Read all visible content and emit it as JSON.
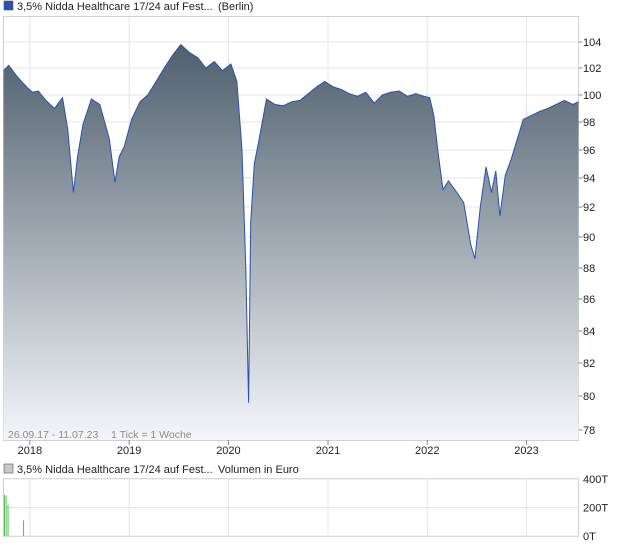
{
  "price_chart": {
    "legend_label": "3,5% Nidda Healthcare 17/24 auf Fest...",
    "exchange": "(Berlin)",
    "range_text": "26.09.17 - 11.07.23",
    "tick_text": "1 Tick = 1 Woche",
    "line_color": "#2a50b0",
    "fill_top_color": "#4f5f6d",
    "fill_bottom_color": "#f4f6f9"
  },
  "volume_chart": {
    "legend_label": "3,5% Nidda Healthcare 17/24 auf Fest...",
    "unit_label": "Volumen in Euro",
    "bar_color": "#55c055"
  },
  "chart_data": [
    {
      "type": "area",
      "x_axis_type": "date",
      "x_range": [
        "2017-09-26",
        "2023-07-11"
      ],
      "x_tick_labels": [
        "2018",
        "2019",
        "2020",
        "2021",
        "2022",
        "2023"
      ],
      "y_ticks": [
        78,
        80,
        82,
        84,
        86,
        88,
        90,
        92,
        94,
        96,
        98,
        100,
        102,
        104
      ],
      "y_range": [
        77,
        105
      ],
      "y_scale": "nonlinear",
      "grid": true,
      "y_axis_position": "right",
      "series": [
        {
          "x": [
            "2017-09-26",
            "2017-10-15",
            "2017-11-10",
            "2017-12-01",
            "2017-12-20",
            "2018-01-10",
            "2018-02-01",
            "2018-03-01",
            "2018-04-01",
            "2018-05-01",
            "2018-05-20",
            "2018-06-10",
            "2018-06-25",
            "2018-07-15",
            "2018-08-15",
            "2018-09-15",
            "2018-10-20",
            "2018-11-10",
            "2018-11-25",
            "2018-12-15",
            "2019-01-10",
            "2019-02-10",
            "2019-03-10",
            "2019-04-10",
            "2019-05-10",
            "2019-06-10",
            "2019-07-10",
            "2019-08-10",
            "2019-09-10",
            "2019-10-10",
            "2019-11-10",
            "2019-12-10",
            "2020-01-10",
            "2020-02-01",
            "2020-02-20",
            "2020-03-05",
            "2020-03-15",
            "2020-03-23",
            "2020-04-05",
            "2020-04-20",
            "2020-05-20",
            "2020-06-20",
            "2020-07-20",
            "2020-08-20",
            "2020-09-20",
            "2020-10-20",
            "2020-11-20",
            "2020-12-20",
            "2021-01-20",
            "2021-02-20",
            "2021-03-20",
            "2021-04-20",
            "2021-05-20",
            "2021-06-20",
            "2021-07-20",
            "2021-08-20",
            "2021-09-20",
            "2021-10-20",
            "2021-11-20",
            "2021-12-20",
            "2022-01-10",
            "2022-01-25",
            "2022-02-10",
            "2022-02-28",
            "2022-03-20",
            "2022-04-20",
            "2022-05-15",
            "2022-06-10",
            "2022-06-25",
            "2022-07-15",
            "2022-08-05",
            "2022-08-25",
            "2022-09-10",
            "2022-09-25",
            "2022-10-15",
            "2022-11-05",
            "2022-11-25",
            "2022-12-20",
            "2023-01-20",
            "2023-02-20",
            "2023-03-20",
            "2023-04-20",
            "2023-05-20",
            "2023-06-20",
            "2023-07-11"
          ],
          "y": [
            101.8,
            102.2,
            101.5,
            101.0,
            100.6,
            100.2,
            100.3,
            99.6,
            99.0,
            99.8,
            97.5,
            93.0,
            95.5,
            97.8,
            99.7,
            99.3,
            96.8,
            93.7,
            95.5,
            96.3,
            98.2,
            99.5,
            100.0,
            101.0,
            102.0,
            103.0,
            103.8,
            103.2,
            102.8,
            102.0,
            102.5,
            101.8,
            102.3,
            101.0,
            96.0,
            88.0,
            79.6,
            91.0,
            95.0,
            96.5,
            99.7,
            99.3,
            99.2,
            99.5,
            99.6,
            100.1,
            100.6,
            101.0,
            100.6,
            100.4,
            100.1,
            99.9,
            100.2,
            99.4,
            100.0,
            100.2,
            100.3,
            99.9,
            100.1,
            99.9,
            99.8,
            98.5,
            95.8,
            93.2,
            93.8,
            93.0,
            92.3,
            89.5,
            88.6,
            92.0,
            94.8,
            93.0,
            94.5,
            91.4,
            94.2,
            95.3,
            96.6,
            98.2,
            98.5,
            98.8,
            99.0,
            99.3,
            99.6,
            99.3,
            99.5
          ]
        }
      ]
    },
    {
      "type": "bar",
      "x_axis_type": "date",
      "y_ticks": [
        0,
        200,
        400
      ],
      "y_tick_labels": [
        "0T",
        "200T",
        "400T"
      ],
      "y_range": [
        0,
        400
      ],
      "grid": true,
      "series": [
        {
          "x": [
            "2017-09-26",
            "2017-10-02",
            "2017-10-09",
            "2017-12-05"
          ],
          "y": [
            290,
            285,
            220,
            110
          ]
        }
      ]
    }
  ]
}
